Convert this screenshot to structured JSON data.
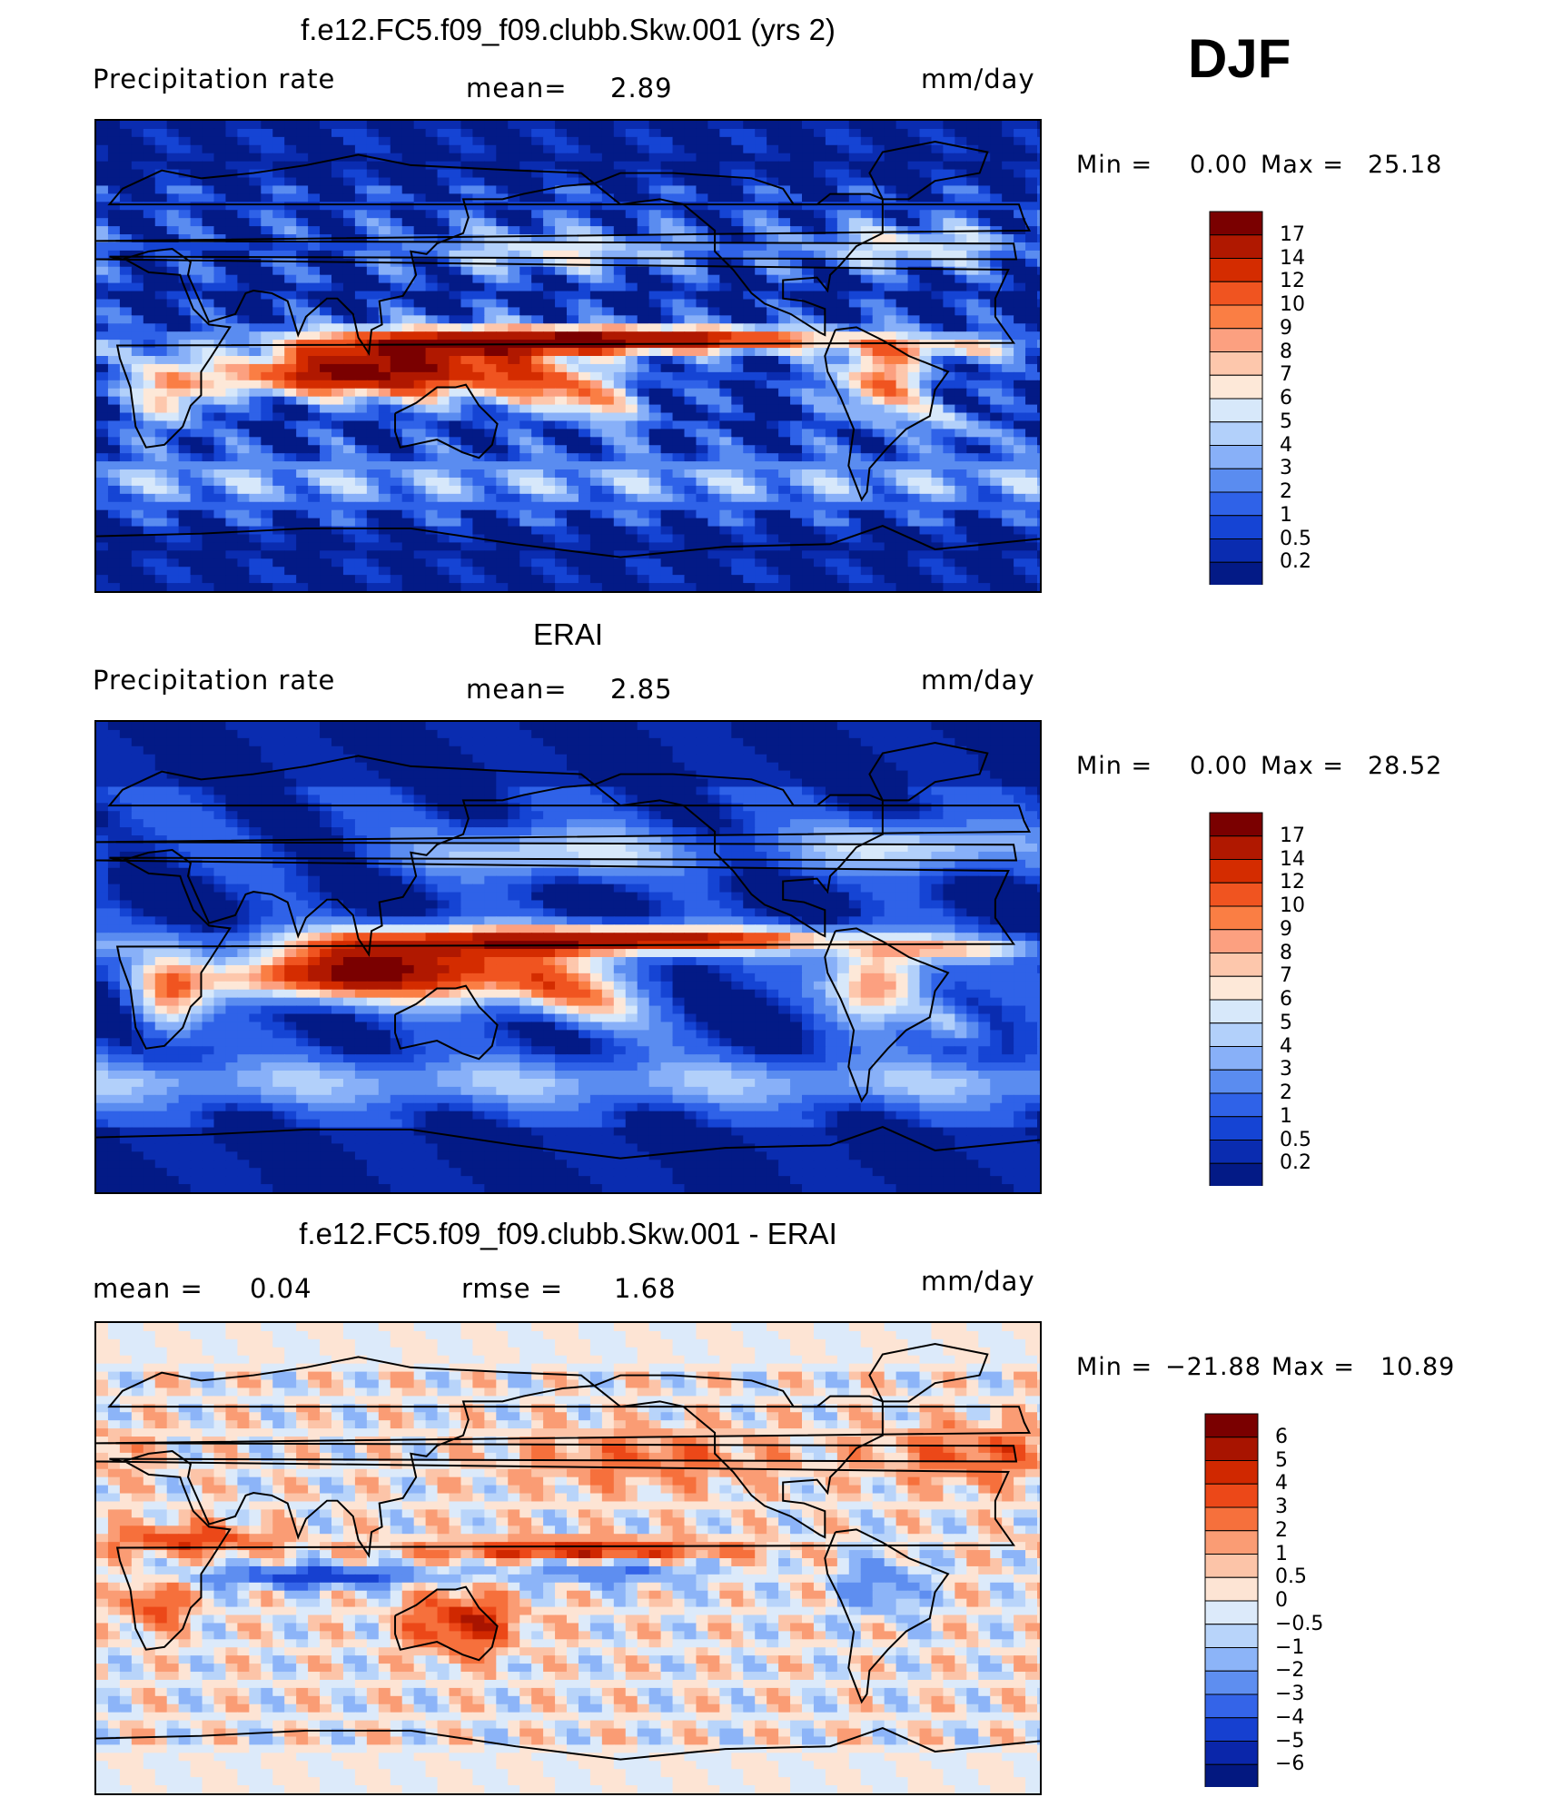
{
  "season": "DJF",
  "chart_data": [
    {
      "type": "heatmap",
      "title": "f.e12.FC5.f09_f09.clubb.Skw.001 (yrs 2)",
      "variable": "Precipitation rate",
      "units": "mm/day",
      "mean_label": "mean=",
      "mean": "2.89",
      "min_label": "Min =",
      "min": "0.00",
      "max_label": "Max =",
      "max": "25.18",
      "colorbar_levels": [
        "17",
        "14",
        "12",
        "10",
        "9",
        "8",
        "7",
        "6",
        "5",
        "4",
        "3",
        "2",
        "1",
        "0.5",
        "0.2"
      ],
      "colorbar_colors": [
        "#7a0000",
        "#b01800",
        "#d42c00",
        "#f05420",
        "#fa7e44",
        "#fca080",
        "#fdc7ac",
        "#fde8d8",
        "#d7e8fa",
        "#b2d0fa",
        "#88b0f8",
        "#5a8cf0",
        "#2f62e8",
        "#1544d4",
        "#0a2cb0",
        "#031a86"
      ]
    },
    {
      "type": "heatmap",
      "title": "ERAI",
      "variable": "Precipitation rate",
      "units": "mm/day",
      "mean_label": "mean=",
      "mean": "2.85",
      "min_label": "Min =",
      "min": "0.00",
      "max_label": "Max =",
      "max": "28.52",
      "colorbar_levels": [
        "17",
        "14",
        "12",
        "10",
        "9",
        "8",
        "7",
        "6",
        "5",
        "4",
        "3",
        "2",
        "1",
        "0.5",
        "0.2"
      ],
      "colorbar_colors": [
        "#7a0000",
        "#b01800",
        "#d42c00",
        "#f05420",
        "#fa7e44",
        "#fca080",
        "#fdc7ac",
        "#fde8d8",
        "#d7e8fa",
        "#b2d0fa",
        "#88b0f8",
        "#5a8cf0",
        "#2f62e8",
        "#1544d4",
        "#0a2cb0",
        "#031a86"
      ]
    },
    {
      "type": "heatmap",
      "title": "f.e12.FC5.f09_f09.clubb.Skw.001 - ERAI",
      "units": "mm/day",
      "mean_label": "mean =",
      "mean": "0.04",
      "rmse_label": "rmse =",
      "rmse": "1.68",
      "min_label": "Min =",
      "min": "−21.88",
      "max_label": "Max =",
      "max": "10.89",
      "colorbar_levels": [
        "6",
        "5",
        "4",
        "3",
        "2",
        "1",
        "0.5",
        "0",
        "−0.5",
        "−1",
        "−2",
        "−3",
        "−4",
        "−5",
        "−6"
      ],
      "colorbar_colors": [
        "#7a0000",
        "#a81400",
        "#d02800",
        "#ec4818",
        "#f6703c",
        "#fa9c74",
        "#fcc4a8",
        "#fde4d4",
        "#dceafa",
        "#b8d4fa",
        "#8cb4f8",
        "#5e8ef0",
        "#3464e8",
        "#1640d0",
        "#0a26aa",
        "#031880"
      ]
    }
  ]
}
